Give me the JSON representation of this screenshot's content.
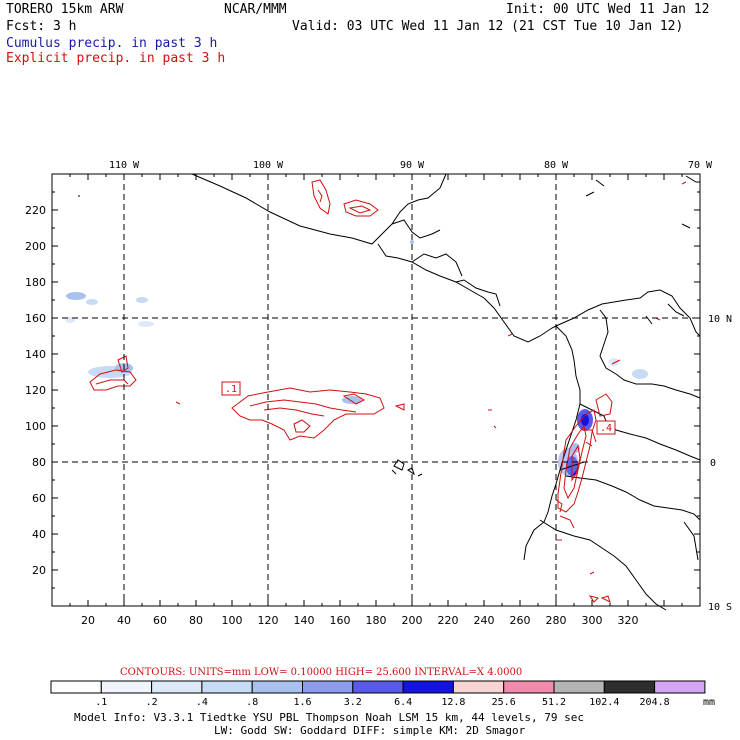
{
  "header": {
    "left_line1": "TORERO  15km ARW",
    "center_line1": "NCAR/MMM",
    "init": "Init: 00 UTC Wed 11 Jan 12",
    "fcst_label": "Fcst:    3 h",
    "valid": "Valid: 03 UTC Wed 11 Jan 12 (21 CST Tue 10 Jan 12)",
    "cumulus": "Cumulus precip. in past 3 h",
    "explicit": "Explicit precip. in past 3 h"
  },
  "map": {
    "lon_labels": [
      "110 W",
      "100 W",
      "90 W",
      "80 W",
      "70 W"
    ],
    "lat_labels": [
      "10 N",
      "0",
      "10 S"
    ],
    "x_ticks": [
      "20",
      "40",
      "60",
      "80",
      "100",
      "120",
      "140",
      "160",
      "180",
      "200",
      "220",
      "240",
      "260",
      "280",
      "300",
      "320"
    ],
    "y_ticks": [
      "20",
      "40",
      "60",
      "80",
      "100",
      "120",
      "140",
      "160",
      "180",
      "200",
      "220"
    ],
    "contour_labels": [
      ".1",
      ".4"
    ],
    "colors": {
      "contour": "#d01010",
      "coast": "#000000",
      "grid": "#000000"
    }
  },
  "contours_info": {
    "text": "CONTOURS:  UNITS=mm  LOW= 0.10000      HIGH=  25.600      INTERVAL=X  4.0000"
  },
  "colorbar": {
    "labels": [
      ".1",
      ".2",
      ".4",
      ".8",
      "1.6",
      "3.2",
      "6.4",
      "12.8",
      "25.6",
      "51.2",
      "102.4",
      "204.8"
    ],
    "units": "mm",
    "colors": [
      "#ffffff",
      "#f0f4fb",
      "#dde9f8",
      "#c8dbf6",
      "#a9c1ef",
      "#8e9cee",
      "#5a5ae8",
      "#1414e0",
      "#f8d4d4",
      "#f28aac",
      "#b4b4b4",
      "#2e2e2e",
      "#d6a4f4"
    ]
  },
  "footer": {
    "line1": "Model Info: V3.3.1    Tiedtke YSU PBL   Thompson     Noah LSM  15 km,   44 levels,    79 sec",
    "line2": "LW: Godd SW: Goddard DIFF: simple KM: 2D Smagor"
  }
}
